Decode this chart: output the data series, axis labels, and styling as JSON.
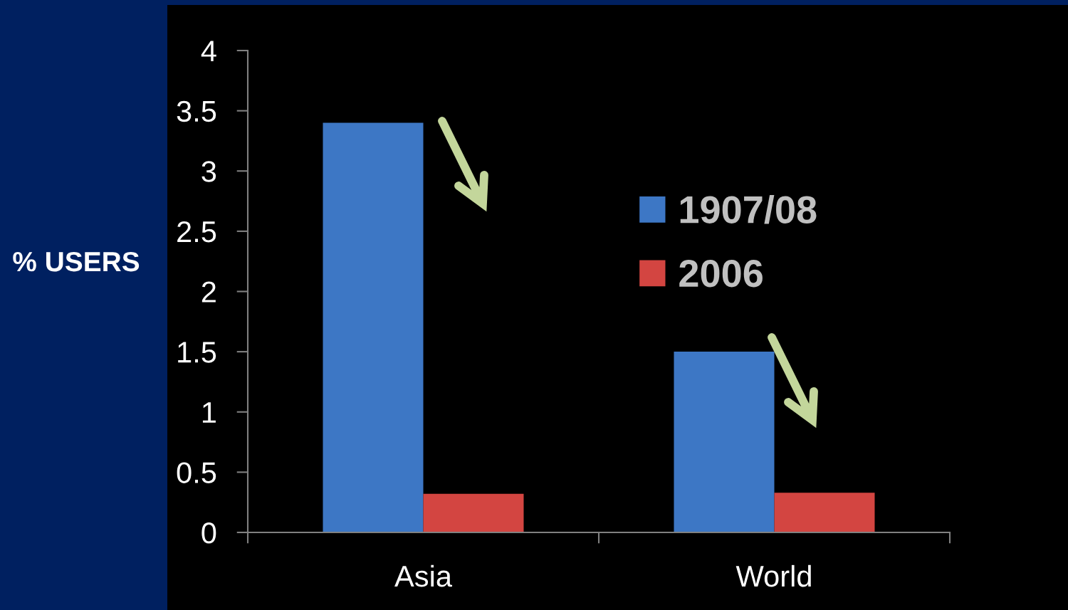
{
  "chart_data": {
    "type": "bar",
    "ylabel": "% USERS",
    "categories": [
      "Asia",
      "World"
    ],
    "series": [
      {
        "name": "1907/08",
        "color": "#3d77c5",
        "values": [
          3.4,
          1.5
        ]
      },
      {
        "name": "2006",
        "color": "#d34541",
        "values": [
          0.32,
          0.33
        ]
      }
    ],
    "ylim": [
      0,
      4
    ],
    "yticks": [
      0,
      0.5,
      1,
      1.5,
      2,
      2.5,
      3,
      3.5,
      4
    ],
    "legend": "right"
  }
}
